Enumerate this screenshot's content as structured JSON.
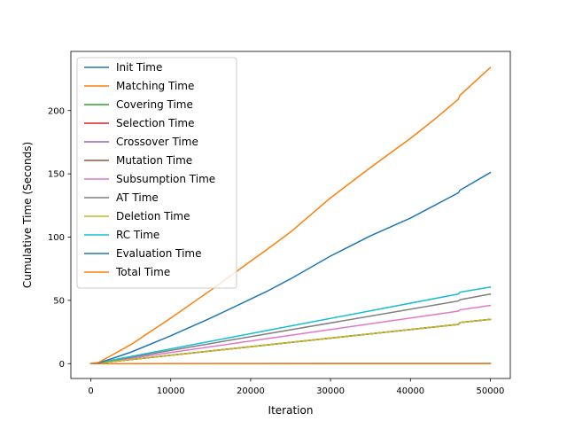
{
  "chart_data": {
    "type": "line",
    "title": "",
    "xlabel": "Iteration",
    "ylabel": "Cumulative Time (Seconds)",
    "xlim": [
      -2500,
      52500
    ],
    "ylim": [
      -11.75,
      246.75
    ],
    "xticks": [
      0,
      10000,
      20000,
      30000,
      40000,
      50000
    ],
    "xtick_labels": [
      "0",
      "10000",
      "20000",
      "30000",
      "40000",
      "50000"
    ],
    "yticks": [
      0,
      50,
      100,
      150,
      200
    ],
    "ytick_labels": [
      "0",
      "50",
      "100",
      "150",
      "200"
    ],
    "grid": false,
    "legend_position": "upper-left",
    "series": [
      {
        "name": "Init Time",
        "color": "#1f77b4",
        "x": [
          0,
          50000
        ],
        "y": [
          0,
          0.2
        ]
      },
      {
        "name": "Matching Time",
        "color": "#ff7f0e",
        "x": [
          0,
          1000,
          46000,
          50000
        ],
        "y": [
          0,
          0,
          0,
          0
        ]
      },
      {
        "name": "Covering Time",
        "color": "#2ca02c",
        "x": [
          0,
          1000,
          46000,
          46200,
          50000
        ],
        "y": [
          0,
          0.5,
          31.0,
          32.5,
          35.0
        ]
      },
      {
        "name": "Selection Time",
        "color": "#d62728",
        "x": [
          0,
          1000,
          46000,
          46200,
          50000
        ],
        "y": [
          0,
          0.5,
          31.0,
          32.5,
          35.0
        ]
      },
      {
        "name": "Crossover Time",
        "color": "#9467bd",
        "x": [
          0,
          1000,
          46000,
          46200,
          50000
        ],
        "y": [
          0,
          0.5,
          31.0,
          32.5,
          35.0
        ]
      },
      {
        "name": "Mutation Time",
        "color": "#8c564b",
        "x": [
          0,
          1000,
          46000,
          46200,
          50000
        ],
        "y": [
          0,
          0.5,
          31.0,
          32.5,
          35.0
        ]
      },
      {
        "name": "Subsumption Time",
        "color": "#e377c2",
        "x": [
          0,
          1000,
          46000,
          46200,
          50000
        ],
        "y": [
          0,
          0.6,
          41.5,
          42.5,
          46.0
        ]
      },
      {
        "name": "AT Time",
        "color": "#7f7f7f",
        "x": [
          0,
          1000,
          46000,
          46200,
          50000
        ],
        "y": [
          0,
          0.7,
          49.5,
          50.5,
          55.0
        ]
      },
      {
        "name": "Deletion Time",
        "color": "#bcbd22",
        "x": [
          0,
          1000,
          46000,
          46200,
          50000
        ],
        "y": [
          0,
          0.5,
          31.0,
          32.5,
          35.0
        ]
      },
      {
        "name": "RC Time",
        "color": "#17becf",
        "x": [
          0,
          1000,
          46000,
          46200,
          50000
        ],
        "y": [
          0,
          0.8,
          55.0,
          56.5,
          60.5
        ]
      },
      {
        "name": "Evaluation Time",
        "color": "#1f77b4",
        "x": [
          0,
          1000,
          5000,
          10000,
          15000,
          20000,
          22000,
          25000,
          30000,
          35000,
          40000,
          43000,
          46000,
          46200,
          50000
        ],
        "y": [
          0,
          0.5,
          9,
          22,
          36,
          51,
          57,
          67,
          85,
          101,
          115,
          125,
          135,
          137,
          151
        ]
      },
      {
        "name": "Total Time",
        "color": "#ff7f0e",
        "x": [
          0,
          1000,
          5000,
          10000,
          15000,
          20000,
          22000,
          25000,
          30000,
          35000,
          40000,
          43000,
          46000,
          46200,
          50000
        ],
        "y": [
          0,
          1,
          15,
          36,
          58,
          81,
          90,
          104,
          131,
          155,
          178,
          193,
          209,
          212,
          234
        ]
      }
    ]
  }
}
